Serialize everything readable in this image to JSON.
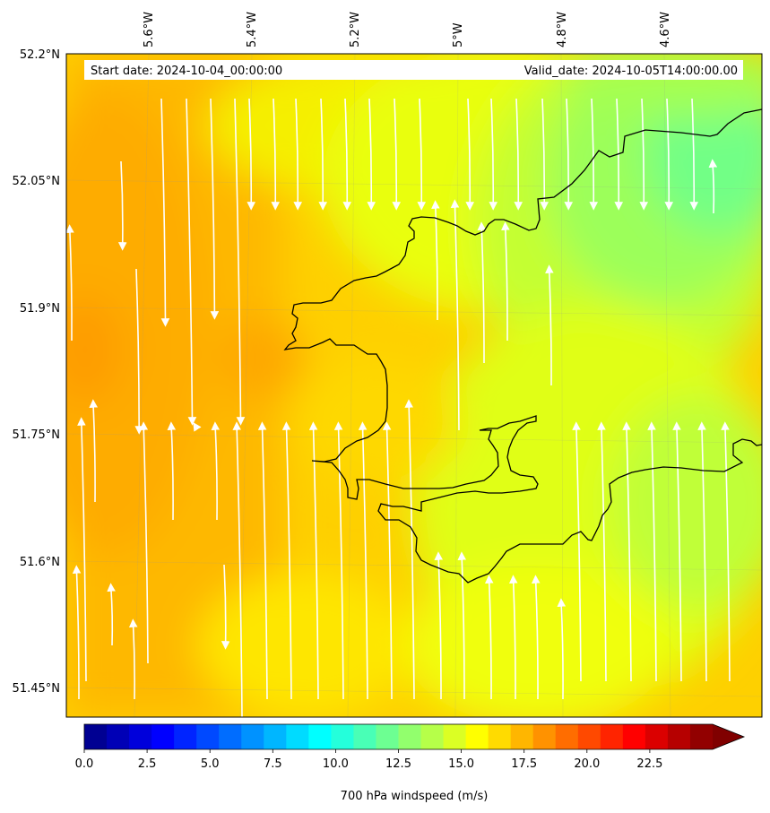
{
  "map": {
    "start_date": "Start date: 2024-10-04_00:00:00",
    "valid_date": "Valid_date: 2024-10-05T14:00:00.00",
    "lon_labels": [
      "5.6°W",
      "5.4°W",
      "5.2°W",
      "5°W",
      "4.8°W",
      "4.6°W"
    ],
    "lat_labels": [
      "52.2°N",
      "52.05°N",
      "51.9°N",
      "51.75°N",
      "51.6°N",
      "51.45°N"
    ],
    "streamline_color": "#ffffff",
    "coastline_color": "#000000"
  },
  "colorbar": {
    "label": "700 hPa windspeed (m/s)",
    "ticks": [
      "0.0",
      "2.5",
      "5.0",
      "7.5",
      "10.0",
      "12.5",
      "15.0",
      "17.5",
      "20.0",
      "22.5"
    ],
    "min": 0,
    "max": 25,
    "levels": 28,
    "extend": "max",
    "colormap": "jet"
  },
  "field": {
    "dominant_speed_range_ms": [
      12,
      19
    ],
    "fastest_region": "west",
    "slowest_region": "north-east"
  }
}
